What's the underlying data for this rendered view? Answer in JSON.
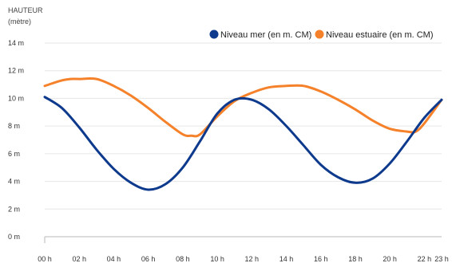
{
  "chart_data": {
    "type": "line",
    "ylabel": "HAUTEUR",
    "ylabel_unit": "(mètre)",
    "xlabel": "",
    "ylim": [
      0,
      14
    ],
    "y_ticks": [
      0,
      2,
      4,
      6,
      8,
      10,
      12,
      14
    ],
    "y_tick_labels": [
      "0 m",
      "2 m",
      "4 m",
      "6 m",
      "8 m",
      "10 m",
      "12 m",
      "14 m"
    ],
    "xlim": [
      0,
      23
    ],
    "x_ticks": [
      0,
      2,
      4,
      6,
      8,
      10,
      12,
      14,
      16,
      18,
      20,
      22,
      23
    ],
    "x_tick_labels": [
      "00 h",
      "02 h",
      "04 h",
      "06 h",
      "08 h",
      "10 h",
      "12 h",
      "14 h",
      "16 h",
      "18 h",
      "20 h",
      "22 h",
      "23 h"
    ],
    "grid": true,
    "legend_position": "top-right",
    "series": [
      {
        "name": "Niveau mer (en m. CM)",
        "color": "#0d3a8c",
        "x": [
          0,
          1,
          2,
          3,
          4,
          5,
          6,
          7,
          8,
          9,
          10,
          11,
          12,
          13,
          14,
          15,
          16,
          17,
          18,
          19,
          20,
          21,
          22,
          23
        ],
        "y": [
          10.1,
          9.3,
          7.9,
          6.3,
          4.9,
          3.9,
          3.4,
          3.8,
          5.0,
          6.9,
          8.9,
          9.9,
          9.9,
          9.2,
          8.0,
          6.6,
          5.2,
          4.3,
          3.9,
          4.2,
          5.3,
          6.9,
          8.6,
          9.9
        ]
      },
      {
        "name": "Niveau estuaire (en m. CM)",
        "color": "#f5812a",
        "x": [
          0,
          1,
          1.5,
          2,
          3,
          4,
          5,
          6,
          7,
          8,
          8.5,
          9,
          10,
          11,
          12,
          13,
          14,
          15,
          16,
          17,
          18,
          19,
          20,
          21,
          21.5,
          22,
          23
        ],
        "y": [
          10.9,
          11.3,
          11.4,
          11.4,
          11.4,
          10.9,
          10.2,
          9.3,
          8.3,
          7.4,
          7.3,
          7.4,
          8.7,
          9.8,
          10.4,
          10.8,
          10.9,
          10.9,
          10.5,
          9.9,
          9.2,
          8.4,
          7.8,
          7.6,
          7.6,
          8.2,
          9.9
        ]
      }
    ]
  }
}
